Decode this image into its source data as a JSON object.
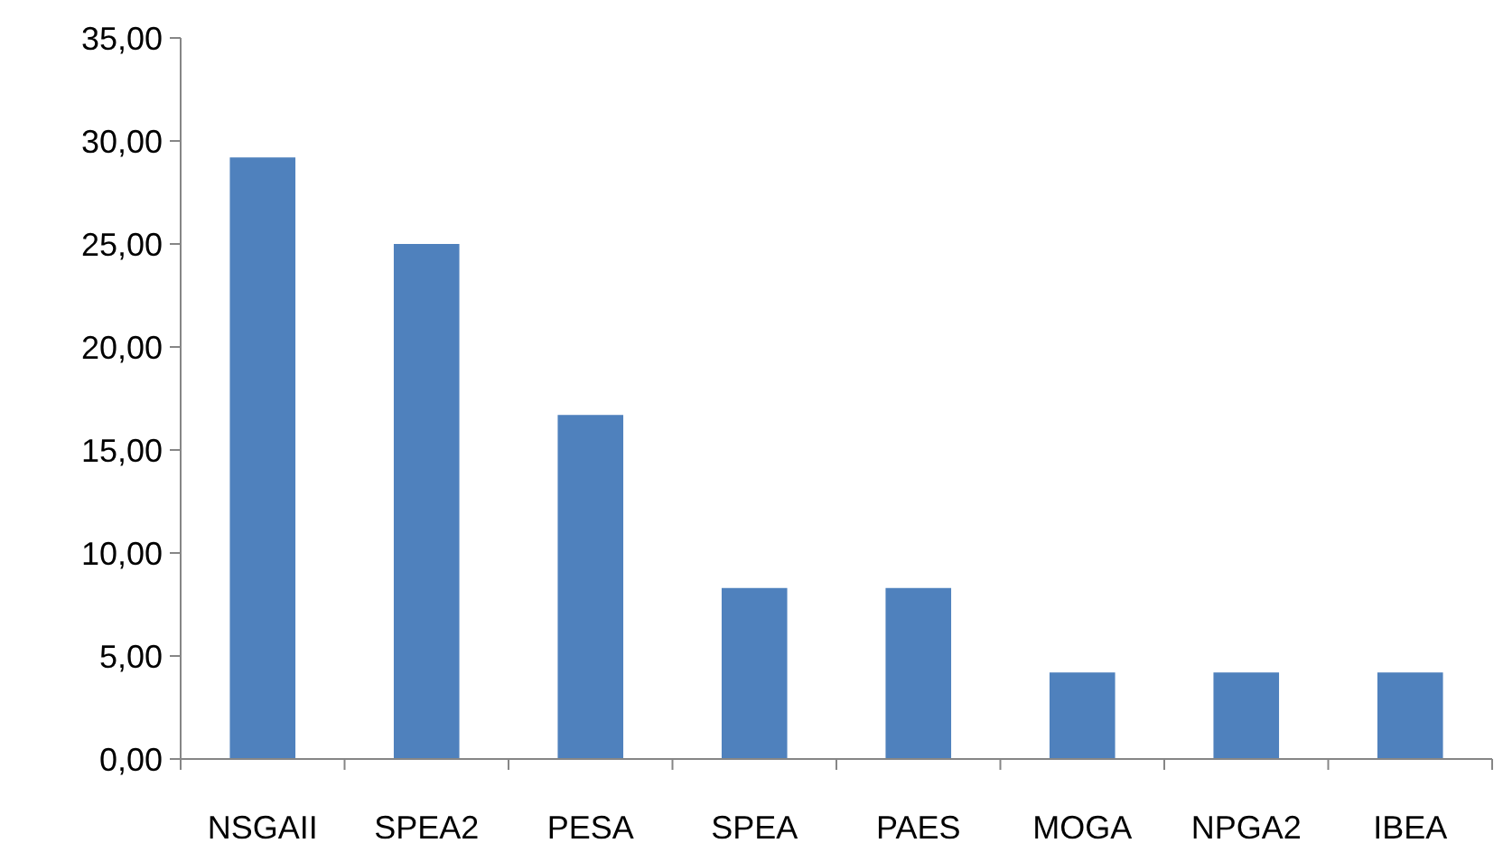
{
  "chart_data": {
    "type": "bar",
    "categories": [
      "NSGAII",
      "SPEA2",
      "PESA",
      "SPEA",
      "PAES",
      "MOGA",
      "NPGA2",
      "IBEA"
    ],
    "values": [
      29.2,
      25.0,
      16.7,
      8.3,
      8.3,
      4.2,
      4.2,
      4.2
    ],
    "color": "#4f81bd",
    "ylim": [
      0,
      35
    ],
    "yticks": [
      {
        "value": 0,
        "label": "0,00"
      },
      {
        "value": 5,
        "label": "5,00"
      },
      {
        "value": 10,
        "label": "10,00"
      },
      {
        "value": 15,
        "label": "15,00"
      },
      {
        "value": 20,
        "label": "20,00"
      },
      {
        "value": 25,
        "label": "25,00"
      },
      {
        "value": 30,
        "label": "30,00"
      },
      {
        "value": 35,
        "label": "35,00"
      }
    ],
    "grid": false
  }
}
